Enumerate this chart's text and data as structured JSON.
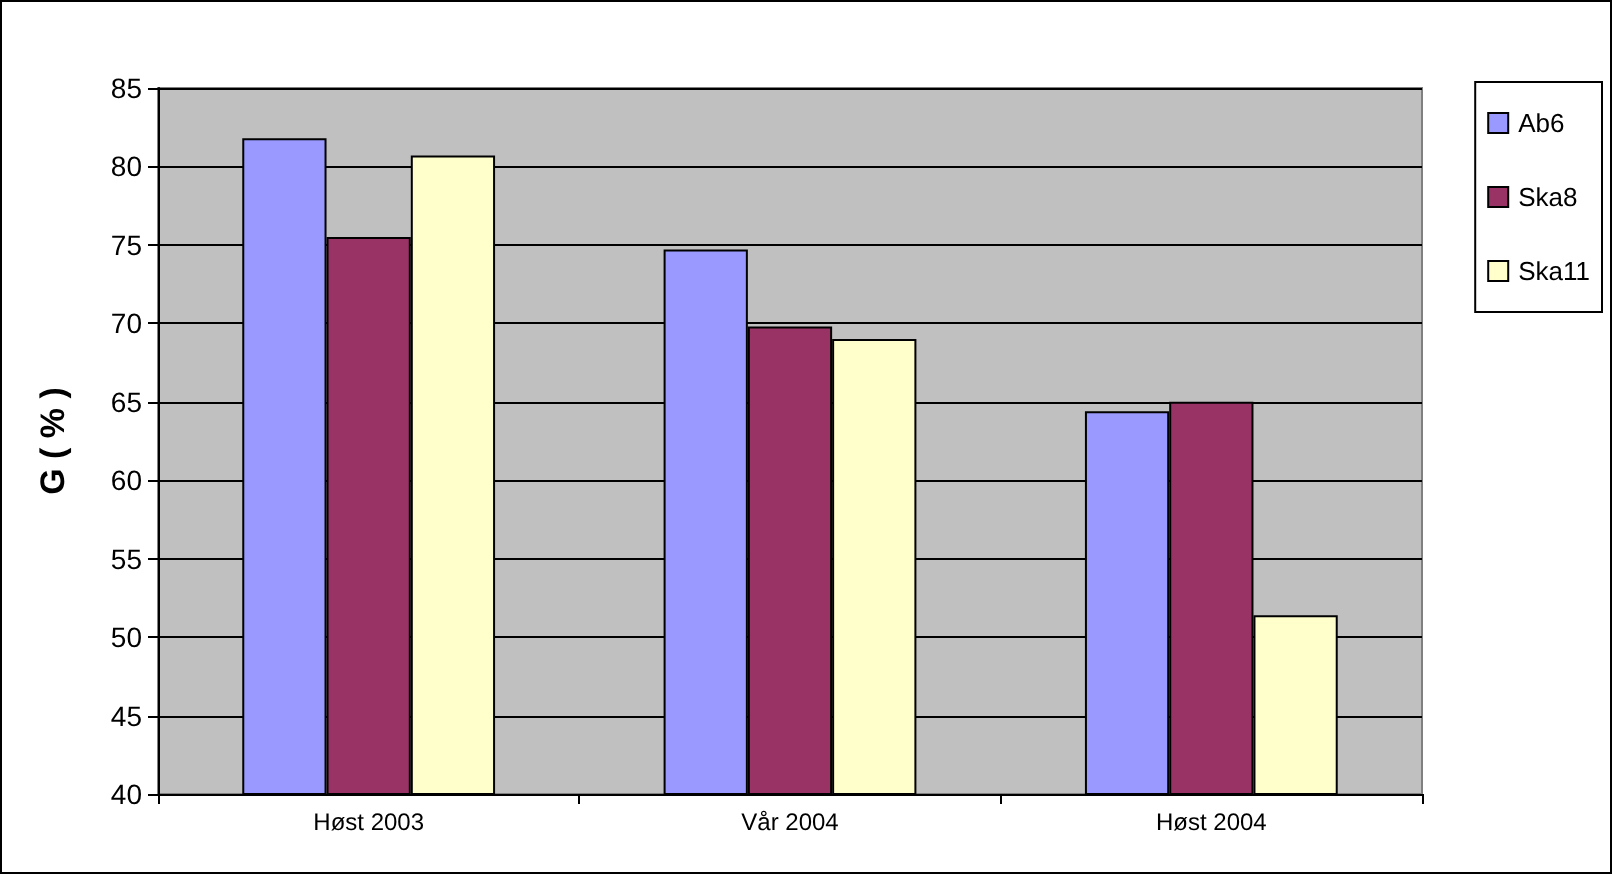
{
  "chart_data": {
    "type": "bar",
    "ylabel": "G ( % )",
    "categories": [
      "Høst 2003",
      "Vår 2004",
      "Høst 2004"
    ],
    "series": [
      {
        "name": "Ab6",
        "color": "#9999ff",
        "values": [
          81.8,
          74.7,
          64.4
        ]
      },
      {
        "name": "Ska8",
        "color": "#993366",
        "values": [
          75.5,
          69.8,
          65.0
        ]
      },
      {
        "name": "Ska11",
        "color": "#ffffcc",
        "values": [
          80.7,
          69.0,
          51.4
        ]
      }
    ],
    "ylim": [
      40,
      85
    ],
    "yticks": [
      40,
      45,
      50,
      55,
      60,
      65,
      70,
      75,
      80,
      85
    ],
    "grid": "y",
    "legend": "right"
  }
}
